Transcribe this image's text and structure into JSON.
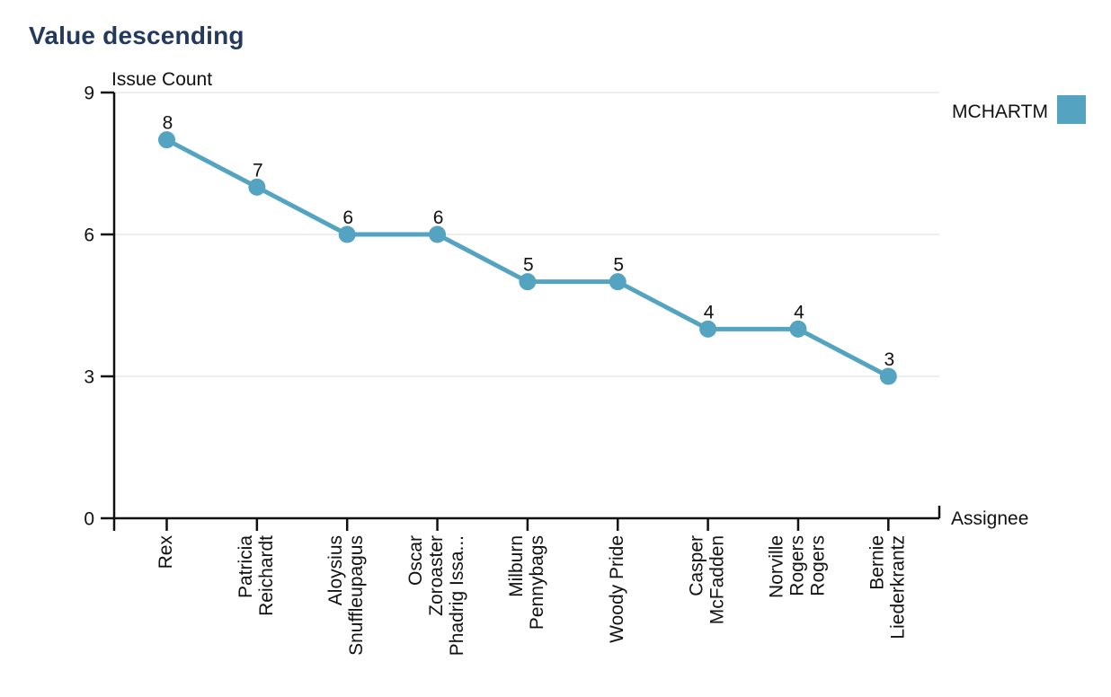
{
  "page": {
    "title": "Value descending"
  },
  "chart_data": {
    "type": "line",
    "title": "Value descending",
    "ylabel": "Issue Count",
    "xlabel": "Assignee",
    "categories": [
      "Rex",
      "Patricia Reichardt",
      "Aloysius Snuffleupagus",
      "Oscar Zoroaster Phadrig Issa...",
      "Milburn Pennybags",
      "Woody Pride",
      "Casper McFadden",
      "Norville Rogers Rogers",
      "Bernie Liederkrantz"
    ],
    "category_lines": [
      [
        "Rex"
      ],
      [
        "Patricia",
        "Reichardt"
      ],
      [
        "Aloysius",
        "Snuffleupagus"
      ],
      [
        "Oscar",
        "Zoroaster",
        "Phadrig Issa..."
      ],
      [
        "Milburn",
        "Pennybags"
      ],
      [
        "Woody Pride"
      ],
      [
        "Casper",
        "McFadden"
      ],
      [
        "Norville",
        "Rogers",
        "Rogers"
      ],
      [
        "Bernie",
        "Liederkrantz"
      ]
    ],
    "series": [
      {
        "name": "MCHARTM",
        "values": [
          8,
          7,
          6,
          6,
          5,
          5,
          4,
          4,
          3
        ]
      }
    ],
    "data_labels": [
      8,
      7,
      6,
      6,
      5,
      5,
      4,
      4,
      3
    ],
    "yticks": [
      0,
      3,
      6,
      9
    ],
    "ylim": [
      0,
      9
    ],
    "grid": "horizontal",
    "legend": {
      "label": "MCHARTM",
      "position": "top-right"
    },
    "colors": {
      "series": "#54a3c0",
      "title": "#24395e",
      "axis": "#111111",
      "text": "#111111",
      "grid": "#e9e9e9",
      "background": "#ffffff"
    }
  }
}
